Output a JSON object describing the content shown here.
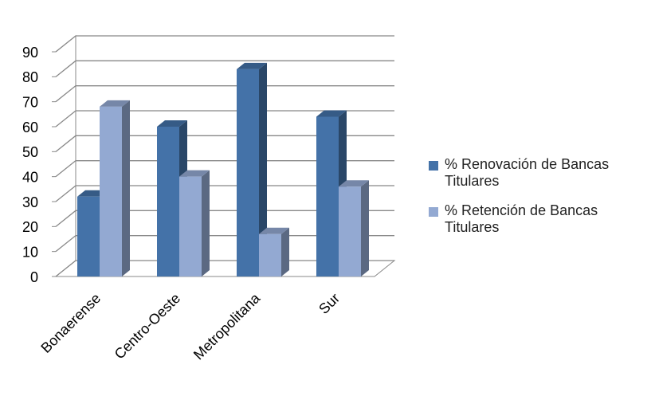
{
  "chart_data": {
    "type": "bar3d",
    "categories": [
      "Bonaerense",
      "Centro-Oeste",
      "Metropolitana",
      "Sur"
    ],
    "series": [
      {
        "name": "% Renovación de Bancas Titulares",
        "color": "#4472a8",
        "values": [
          32,
          60,
          83,
          64
        ]
      },
      {
        "name": "% Retención de Bancas Titulares",
        "color": "#93a9d2",
        "values": [
          68,
          40,
          17,
          36
        ]
      }
    ],
    "ylim": [
      0,
      90
    ],
    "yticks": [
      0,
      10,
      20,
      30,
      40,
      50,
      60,
      70,
      80,
      90
    ],
    "grid": true,
    "legend": "right"
  }
}
